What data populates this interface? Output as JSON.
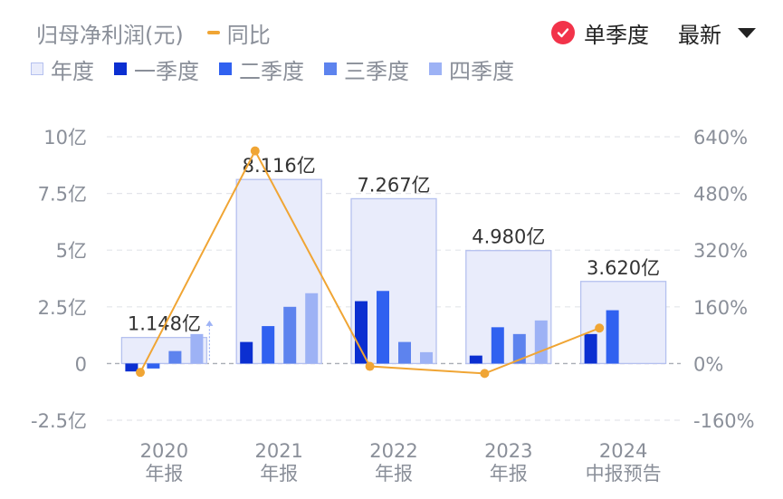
{
  "legend": {
    "metric": "归母净利润(元)",
    "yoy": "同比",
    "annual": "年度",
    "q1": "一季度",
    "q2": "二季度",
    "q3": "三季度",
    "q4": "四季度"
  },
  "controls": {
    "single_season": "单季度",
    "latest": "最新"
  },
  "colors": {
    "annual_fill": "#e9ecfb",
    "annual_stroke": "#b5c1ef",
    "q1": "#0b2fd1",
    "q2": "#3061f0",
    "q3": "#5d83ee",
    "q4": "#9db2f5",
    "yoy": "#f0a534",
    "check": "#f2334a",
    "axis_text": "#8a8f99"
  },
  "chart_data": {
    "type": "bar",
    "categories": [
      {
        "year": "2020",
        "label": "年报"
      },
      {
        "year": "2021",
        "label": "年报"
      },
      {
        "year": "2022",
        "label": "年报"
      },
      {
        "year": "2023",
        "label": "年报"
      },
      {
        "year": "2024",
        "label": "中报预告"
      }
    ],
    "annual": [
      1.148,
      8.116,
      7.267,
      4.98,
      3.62
    ],
    "annual_labels": [
      "1.148亿",
      "8.116亿",
      "7.267亿",
      "4.980亿",
      "3.620亿"
    ],
    "quarters": [
      [
        -0.35,
        -0.22,
        0.55,
        1.3
      ],
      [
        0.95,
        1.65,
        2.5,
        3.1
      ],
      [
        2.75,
        3.2,
        0.95,
        0.5
      ],
      [
        0.35,
        1.6,
        1.3,
        1.9
      ],
      [
        1.3,
        2.35,
        null,
        null
      ]
    ],
    "yoy": [
      -25,
      600,
      -8,
      -28,
      100
    ],
    "y_left": {
      "min": -2.5,
      "max": 10,
      "ticks": [
        10,
        7.5,
        5,
        2.5,
        0,
        -2.5
      ],
      "tick_labels": [
        "10亿",
        "7.5亿",
        "5亿",
        "2.5亿",
        "0",
        "-2.5亿"
      ]
    },
    "y_right": {
      "min": -160,
      "max": 640,
      "ticks": [
        640,
        480,
        320,
        160,
        0,
        -160
      ],
      "tick_labels": [
        "640%",
        "480%",
        "320%",
        "160%",
        "0%",
        "-160%"
      ]
    },
    "grid": true
  }
}
